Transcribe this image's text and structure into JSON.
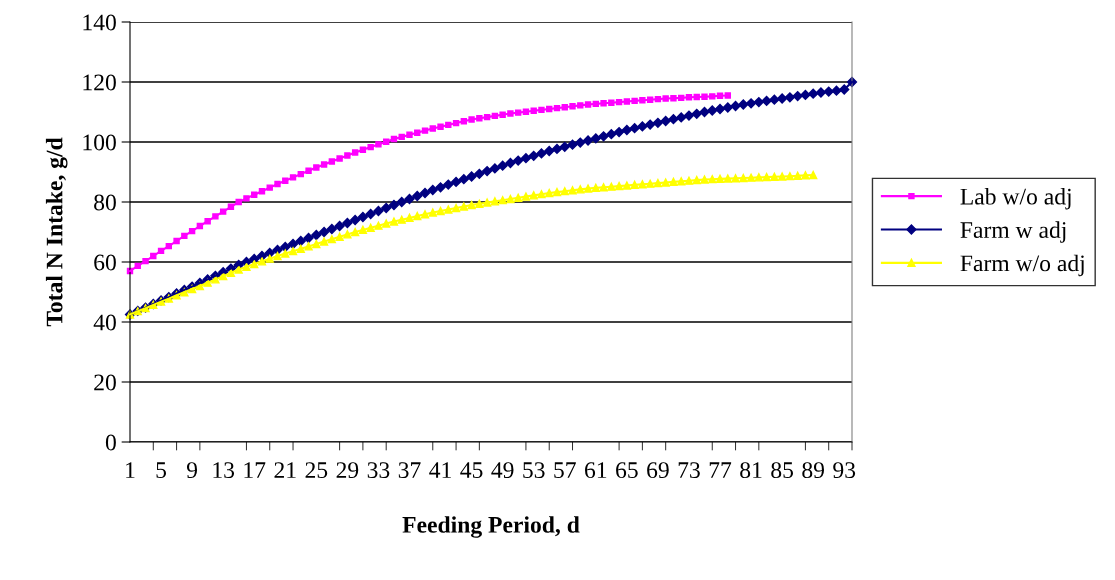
{
  "chart_data": {
    "type": "line",
    "xlabel": "Feeding Period, d",
    "ylabel": "Total N Intake, g/d",
    "categories": [
      "1",
      null,
      null,
      null,
      "5",
      null,
      null,
      null,
      "9",
      null,
      null,
      null,
      "13",
      null,
      null,
      null,
      "17",
      null,
      null,
      null,
      "21",
      null,
      null,
      null,
      "25",
      null,
      null,
      null,
      "29",
      null,
      null,
      null,
      "33",
      null,
      null,
      null,
      "37",
      null,
      null,
      null,
      "41",
      null,
      null,
      null,
      "45",
      null,
      null,
      null,
      "49",
      null,
      null,
      null,
      "53",
      null,
      null,
      null,
      "57",
      null,
      null,
      null,
      "61",
      null,
      null,
      null,
      "65",
      null,
      null,
      null,
      "69",
      null,
      null,
      null,
      "73",
      null,
      null,
      null,
      "77",
      null,
      null,
      null,
      "81",
      null,
      null,
      null,
      "85",
      null,
      null,
      null,
      "89",
      null,
      null,
      null,
      "93",
      null
    ],
    "ylim": [
      0,
      140
    ],
    "yticks": [
      0,
      20,
      40,
      60,
      80,
      100,
      120,
      140
    ],
    "grid": "y",
    "legend": "right",
    "series": [
      {
        "name": "Lab w/o adj",
        "color": "#ff00ff",
        "marker": "square",
        "values": [
          57,
          58.7,
          60.3,
          62,
          63.7,
          65.3,
          67,
          68.7,
          70.3,
          72,
          73.6,
          75.2,
          76.8,
          78.4,
          80,
          81.2,
          82.4,
          83.6,
          84.8,
          86,
          87.1,
          88.2,
          89.3,
          90.4,
          91.5,
          92.5,
          93.5,
          94.5,
          95.5,
          96.5,
          97.4,
          98.3,
          99.2,
          100.1,
          101,
          101.7,
          102.4,
          103.1,
          103.8,
          104.5,
          105.1,
          105.7,
          106.3,
          106.9,
          107.5,
          107.9,
          108.3,
          108.7,
          109.1,
          109.5,
          109.8,
          110.1,
          110.4,
          110.7,
          111,
          111.3,
          111.6,
          111.9,
          112.2,
          112.5,
          112.7,
          112.9,
          113.1,
          113.3,
          113.5,
          113.7,
          113.9,
          114.1,
          114.3,
          114.5,
          114.6,
          114.7,
          114.9,
          115,
          115.1,
          115.2,
          115.4,
          115.5,
          null,
          null,
          null,
          null,
          null,
          null,
          null,
          null,
          null,
          null,
          null,
          null,
          null,
          null,
          null,
          null
        ]
      },
      {
        "name": "Farm w adj",
        "color": "#000080",
        "marker": "diamond",
        "values": [
          42.5,
          43.7,
          44.8,
          46,
          47.2,
          48.3,
          49.5,
          50.7,
          51.8,
          53,
          54.2,
          55.4,
          56.6,
          57.8,
          59,
          60,
          61,
          62,
          63,
          64,
          65,
          66,
          67,
          68,
          69,
          70,
          71,
          72,
          73,
          74,
          75,
          76,
          77,
          78,
          79,
          80,
          81,
          82,
          83,
          84,
          84.9,
          85.8,
          86.7,
          87.6,
          88.5,
          89.4,
          90.3,
          91.2,
          92.1,
          93,
          93.8,
          94.6,
          95.4,
          96.2,
          97,
          97.7,
          98.4,
          99.1,
          99.8,
          100.5,
          101.2,
          101.9,
          102.6,
          103.3,
          104,
          104.6,
          105.2,
          105.8,
          106.4,
          107,
          107.6,
          108.2,
          108.8,
          109.4,
          110,
          110.5,
          111,
          111.5,
          112,
          112.5,
          112.9,
          113.3,
          113.7,
          114.1,
          114.5,
          114.9,
          115.3,
          115.7,
          116.1,
          116.5,
          116.8,
          117.1,
          117.5,
          120
        ]
      },
      {
        "name": "Farm w/o adj",
        "color": "#ffff00",
        "marker": "triangle",
        "values": [
          42.5,
          43.6,
          44.6,
          45.7,
          46.8,
          47.8,
          48.9,
          49.9,
          51,
          52,
          53.1,
          54.2,
          55.3,
          56.4,
          57.5,
          58.4,
          59.3,
          60.2,
          61.1,
          62,
          62.8,
          63.6,
          64.4,
          65.2,
          66,
          66.8,
          67.6,
          68.4,
          69.2,
          70,
          70.7,
          71.4,
          72.1,
          72.8,
          73.5,
          74.1,
          74.7,
          75.3,
          75.9,
          76.5,
          77,
          77.5,
          78,
          78.5,
          79,
          79.4,
          79.8,
          80.2,
          80.6,
          81,
          81.4,
          81.8,
          82.2,
          82.6,
          83,
          83.3,
          83.6,
          83.9,
          84.2,
          84.5,
          84.7,
          84.9,
          85.1,
          85.3,
          85.5,
          85.7,
          85.9,
          86.1,
          86.3,
          86.5,
          86.7,
          86.9,
          87.1,
          87.3,
          87.5,
          87.6,
          87.7,
          87.8,
          87.9,
          88,
          88.1,
          88.2,
          88.3,
          88.4,
          88.5,
          88.6,
          88.7,
          88.9,
          89,
          null,
          null,
          null,
          null,
          null
        ]
      }
    ]
  }
}
